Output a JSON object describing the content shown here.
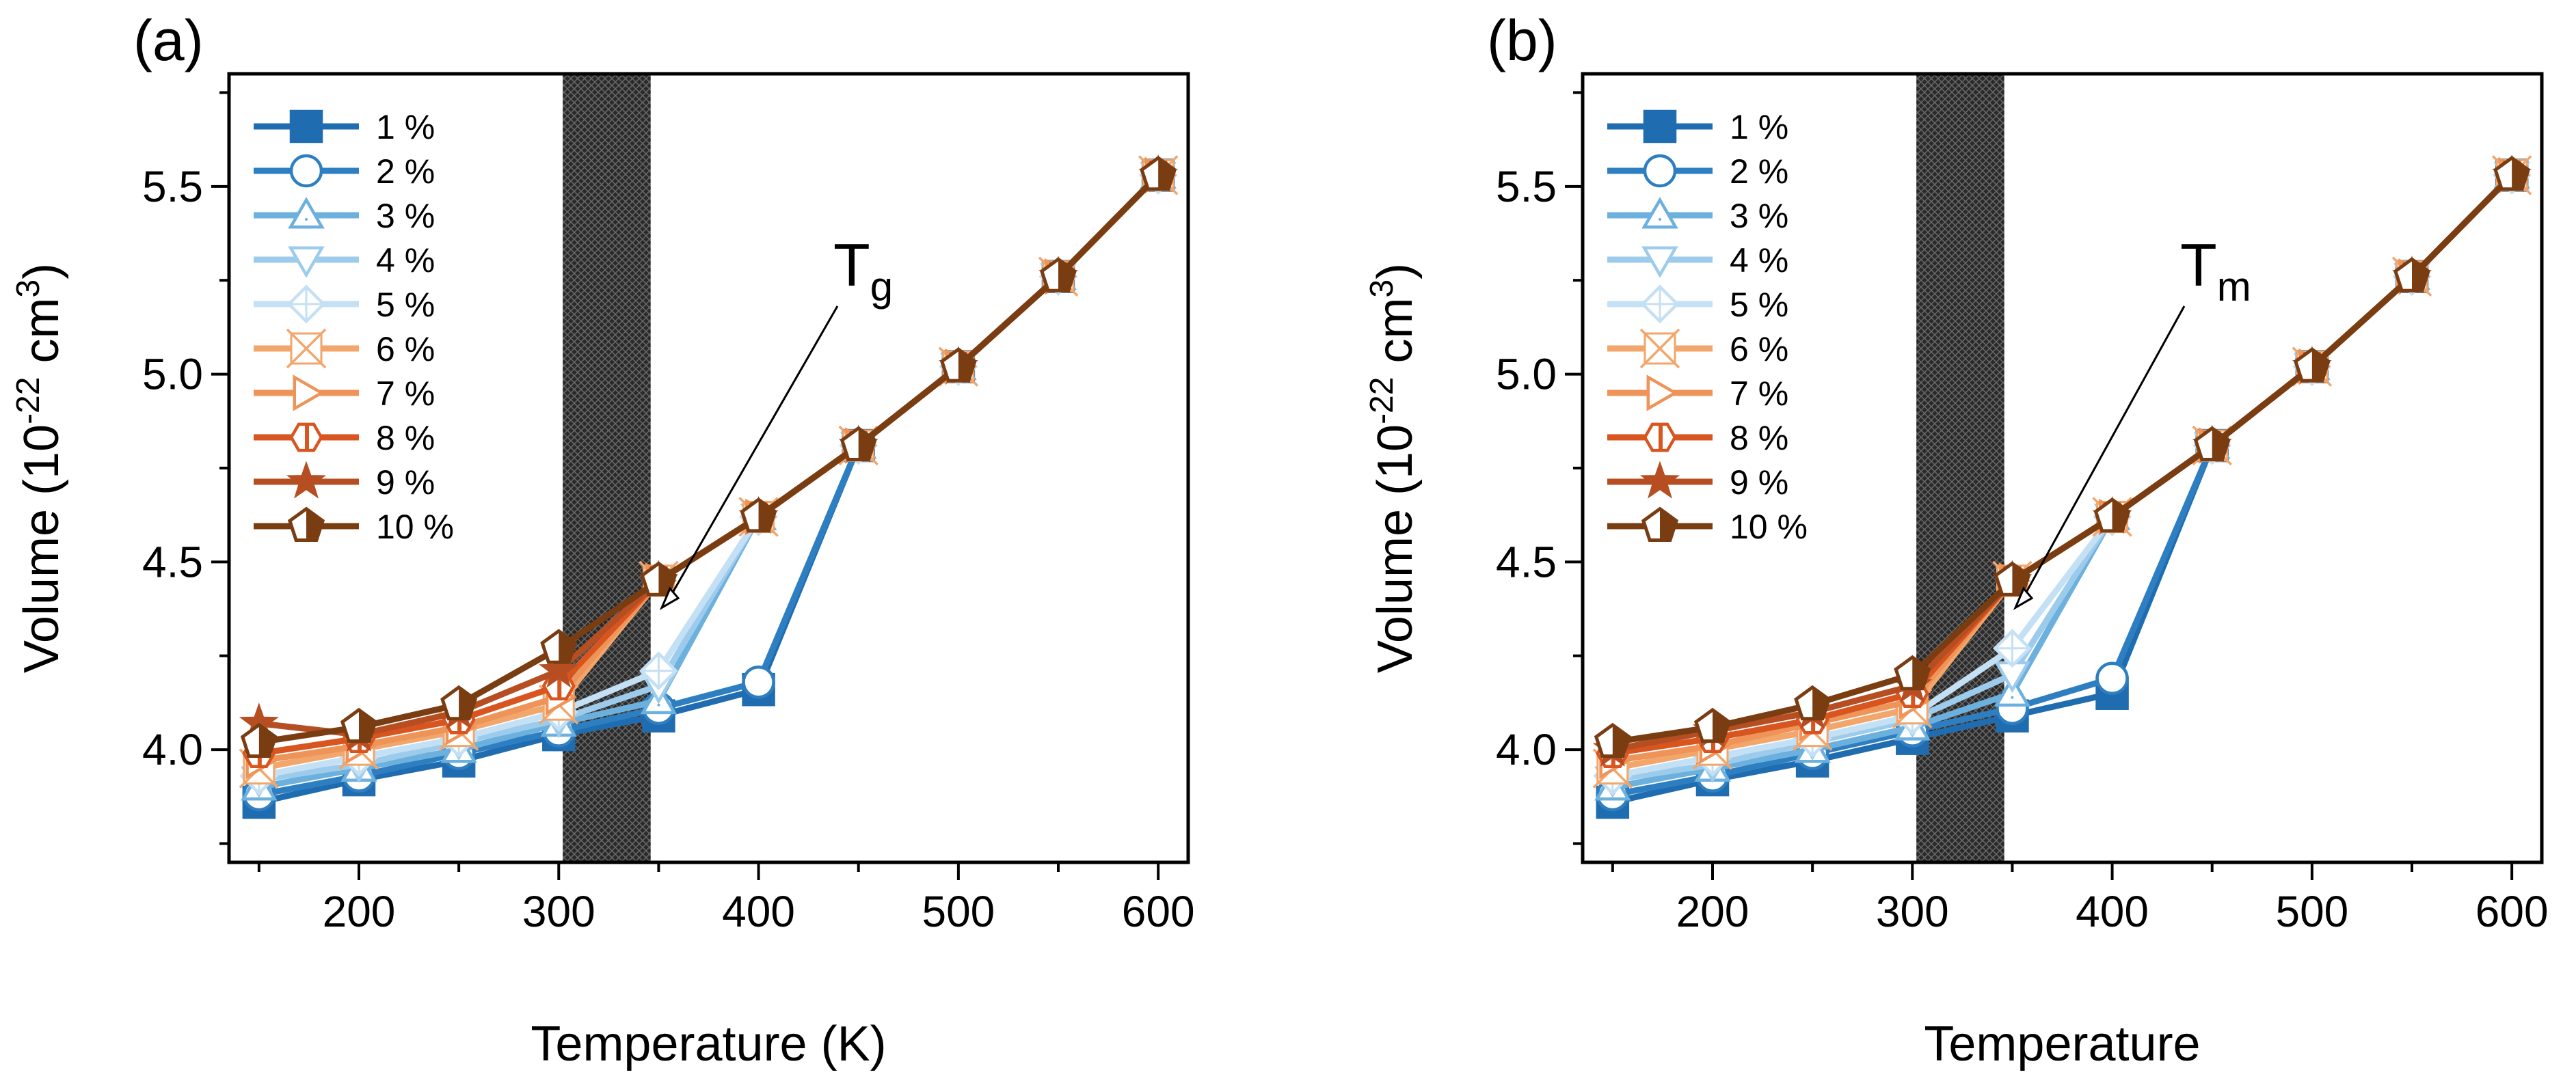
{
  "chart_data": [
    {
      "type": "line",
      "panel_label": "(a)",
      "title": "",
      "xlabel": "Temperature (K)",
      "ylabel": "Volume (10",
      "ylabel_exp": "-22",
      "ylabel_unit": " cm",
      "ylabel_unit_exp": "3",
      "ylabel_close": ")",
      "xlim": [
        135,
        615
      ],
      "ylim": [
        3.7,
        5.8
      ],
      "xticks": [
        200,
        300,
        400,
        500,
        600
      ],
      "xtick_labels": [
        "200",
        "300",
        "400",
        "500",
        "600"
      ],
      "yticks": [
        4.0,
        4.5,
        5.0,
        5.5
      ],
      "ytick_labels": [
        "4.0",
        "4.5",
        "5.0",
        "5.5"
      ],
      "shaded_region": [
        302,
        346
      ],
      "annotation": {
        "text": "T",
        "sub": "g",
        "x": 355,
        "y": 4.4
      },
      "legend_position": "upper-left",
      "x": [
        150,
        200,
        250,
        300,
        350,
        400,
        450,
        500,
        550,
        600
      ],
      "series": [
        {
          "name": "1 %",
          "values": [
            3.86,
            3.92,
            3.97,
            4.04,
            4.09,
            4.16,
            4.81,
            5.02,
            5.26,
            5.53
          ]
        },
        {
          "name": "2 %",
          "values": [
            3.88,
            3.93,
            3.99,
            4.05,
            4.11,
            4.18,
            4.81,
            5.02,
            5.26,
            5.53
          ]
        },
        {
          "name": "3 %",
          "values": [
            3.9,
            3.95,
            4.0,
            4.07,
            4.13,
            4.62,
            4.81,
            5.02,
            5.26,
            5.53
          ]
        },
        {
          "name": "4 %",
          "values": [
            3.92,
            3.96,
            4.02,
            4.08,
            4.17,
            4.62,
            4.81,
            5.02,
            5.26,
            5.53
          ]
        },
        {
          "name": "5 %",
          "values": [
            3.93,
            3.98,
            4.03,
            4.1,
            4.21,
            4.62,
            4.81,
            5.02,
            5.26,
            5.53
          ]
        },
        {
          "name": "6 %",
          "values": [
            3.95,
            4.0,
            4.05,
            4.12,
            4.45,
            4.62,
            4.81,
            5.02,
            5.26,
            5.53
          ]
        },
        {
          "name": "7 %",
          "values": [
            3.97,
            4.01,
            4.06,
            4.14,
            4.45,
            4.62,
            4.81,
            5.02,
            5.26,
            5.53
          ]
        },
        {
          "name": "8 %",
          "values": [
            3.99,
            4.03,
            4.08,
            4.17,
            4.45,
            4.62,
            4.81,
            5.02,
            5.26,
            5.53
          ]
        },
        {
          "name": "9 %",
          "values": [
            4.07,
            4.04,
            4.1,
            4.21,
            4.45,
            4.62,
            4.81,
            5.02,
            5.26,
            5.53
          ]
        },
        {
          "name": "10 %",
          "values": [
            4.02,
            4.06,
            4.12,
            4.27,
            4.45,
            4.62,
            4.81,
            5.02,
            5.26,
            5.53
          ]
        }
      ]
    },
    {
      "type": "line",
      "panel_label": "(b)",
      "title": "",
      "xlabel": "Temperature",
      "ylabel": "Volume (10",
      "ylabel_exp": "-22",
      "ylabel_unit": " cm",
      "ylabel_unit_exp": "3",
      "ylabel_close": ")",
      "xlim": [
        135,
        615
      ],
      "ylim": [
        3.7,
        5.8
      ],
      "xticks": [
        200,
        300,
        400,
        500,
        600
      ],
      "xtick_labels": [
        "200",
        "300",
        "400",
        "500",
        "600"
      ],
      "yticks": [
        4.0,
        4.5,
        5.0,
        5.5
      ],
      "ytick_labels": [
        "4.0",
        "4.5",
        "5.0",
        "5.5"
      ],
      "shaded_region": [
        302,
        346
      ],
      "annotation": {
        "text": "T",
        "sub": "m",
        "x": 355,
        "y": 4.4
      },
      "legend_position": "upper-left",
      "x": [
        150,
        200,
        250,
        300,
        350,
        400,
        450,
        500,
        550,
        600
      ],
      "series": [
        {
          "name": "1 %",
          "values": [
            3.86,
            3.92,
            3.97,
            4.03,
            4.09,
            4.15,
            4.81,
            5.02,
            5.26,
            5.53
          ]
        },
        {
          "name": "2 %",
          "values": [
            3.88,
            3.93,
            3.99,
            4.05,
            4.11,
            4.19,
            4.81,
            5.02,
            5.26,
            5.53
          ]
        },
        {
          "name": "3 %",
          "values": [
            3.9,
            3.95,
            4.0,
            4.06,
            4.15,
            4.62,
            4.81,
            5.02,
            5.26,
            5.53
          ]
        },
        {
          "name": "4 %",
          "values": [
            3.92,
            3.96,
            4.02,
            4.08,
            4.2,
            4.62,
            4.81,
            5.02,
            5.26,
            5.53
          ]
        },
        {
          "name": "5 %",
          "values": [
            3.93,
            3.98,
            4.03,
            4.09,
            4.27,
            4.62,
            4.81,
            5.02,
            5.26,
            5.53
          ]
        },
        {
          "name": "6 %",
          "values": [
            3.95,
            4.0,
            4.05,
            4.11,
            4.45,
            4.62,
            4.81,
            5.02,
            5.26,
            5.53
          ]
        },
        {
          "name": "7 %",
          "values": [
            3.97,
            4.01,
            4.07,
            4.13,
            4.45,
            4.62,
            4.81,
            5.02,
            5.26,
            5.53
          ]
        },
        {
          "name": "8 %",
          "values": [
            3.99,
            4.03,
            4.08,
            4.15,
            4.45,
            4.62,
            4.81,
            5.02,
            5.26,
            5.53
          ]
        },
        {
          "name": "9 %",
          "values": [
            4.0,
            4.05,
            4.1,
            4.17,
            4.45,
            4.62,
            4.81,
            5.02,
            5.26,
            5.53
          ]
        },
        {
          "name": "10 %",
          "values": [
            4.02,
            4.06,
            4.12,
            4.2,
            4.45,
            4.62,
            4.81,
            5.02,
            5.26,
            5.53
          ]
        }
      ]
    }
  ],
  "series_styles": [
    {
      "color": "#1f6db0",
      "marker": "square",
      "fill": "solid"
    },
    {
      "color": "#2e7fc1",
      "marker": "circle",
      "fill": "white"
    },
    {
      "color": "#6cb0de",
      "marker": "triangle",
      "fill": "white"
    },
    {
      "color": "#9dcbec",
      "marker": "triangle-down",
      "fill": "white"
    },
    {
      "color": "#c4e0f4",
      "marker": "diamond-plus",
      "fill": "white"
    },
    {
      "color": "#f2a66b",
      "marker": "x-box",
      "fill": "white"
    },
    {
      "color": "#ef9459",
      "marker": "triangle-right",
      "fill": "white"
    },
    {
      "color": "#d9551f",
      "marker": "hexagon-half",
      "fill": "half"
    },
    {
      "color": "#b64e22",
      "marker": "star",
      "fill": "half"
    },
    {
      "color": "#7a3d12",
      "marker": "pentagon-half",
      "fill": "half"
    }
  ]
}
